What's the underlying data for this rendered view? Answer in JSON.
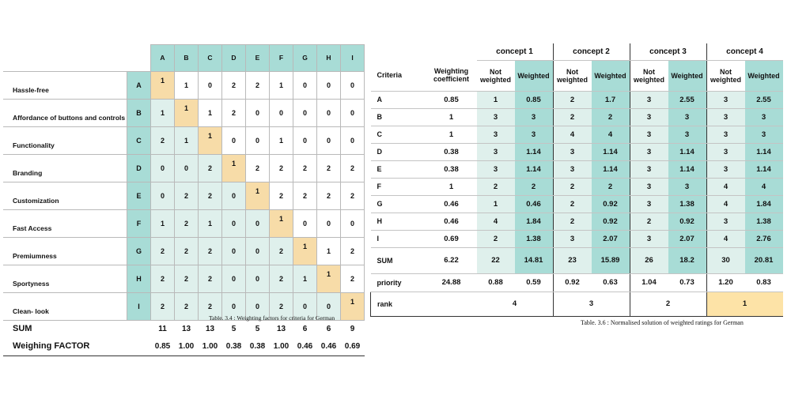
{
  "matrix": {
    "columns": [
      "A",
      "B",
      "C",
      "D",
      "E",
      "F",
      "G",
      "H",
      "I"
    ],
    "rows": [
      {
        "label": "Hassle-free",
        "code": "A",
        "values": [
          "1",
          "1",
          "0",
          "2",
          "2",
          "1",
          "0",
          "0",
          "0"
        ]
      },
      {
        "label": "Affordance of buttons and controls",
        "code": "B",
        "values": [
          "1",
          "1",
          "1",
          "2",
          "0",
          "0",
          "0",
          "0",
          "0"
        ]
      },
      {
        "label": "Functionality",
        "code": "C",
        "values": [
          "2",
          "1",
          "1",
          "0",
          "0",
          "1",
          "0",
          "0",
          "0"
        ]
      },
      {
        "label": "Branding",
        "code": "D",
        "values": [
          "0",
          "0",
          "2",
          "1",
          "2",
          "2",
          "2",
          "2",
          "2"
        ]
      },
      {
        "label": "Customization",
        "code": "E",
        "values": [
          "0",
          "2",
          "2",
          "0",
          "1",
          "2",
          "2",
          "2",
          "2"
        ]
      },
      {
        "label": "Fast Access",
        "code": "F",
        "values": [
          "1",
          "2",
          "1",
          "0",
          "0",
          "1",
          "0",
          "0",
          "0"
        ]
      },
      {
        "label": "Premiumness",
        "code": "G",
        "values": [
          "2",
          "2",
          "2",
          "0",
          "0",
          "2",
          "1",
          "1",
          "2"
        ]
      },
      {
        "label": "Sportyness",
        "code": "H",
        "values": [
          "2",
          "2",
          "2",
          "0",
          "0",
          "2",
          "1",
          "1",
          "2"
        ]
      },
      {
        "label": "Clean- look",
        "code": "I",
        "values": [
          "2",
          "2",
          "2",
          "0",
          "0",
          "2",
          "0",
          "0",
          "1"
        ]
      }
    ],
    "sum_label": "SUM",
    "sums": [
      "11",
      "13",
      "13",
      "5",
      "5",
      "13",
      "6",
      "6",
      "9"
    ],
    "factor_label": "Weighing FACTOR",
    "factors": [
      "0.85",
      "1.00",
      "1.00",
      "0.38",
      "0.38",
      "1.00",
      "0.46",
      "0.46",
      "0.69"
    ],
    "caption": "Table. 3.4 : Weighting factors for criteria for German"
  },
  "ratings": {
    "criteria_header": "Criteria",
    "coef_header": "Weighting coefficient",
    "concepts": [
      "concept 1",
      "concept 2",
      "concept 3",
      "concept 4"
    ],
    "not_weighted_label": "Not weighted",
    "weighted_label": "Weighted",
    "rows": [
      {
        "c": "A",
        "wc": "0.85",
        "v": [
          [
            "1",
            "0.85"
          ],
          [
            "2",
            "1.7"
          ],
          [
            "3",
            "2.55"
          ],
          [
            "3",
            "2.55"
          ]
        ]
      },
      {
        "c": "B",
        "wc": "1",
        "v": [
          [
            "3",
            "3"
          ],
          [
            "2",
            "2"
          ],
          [
            "3",
            "3"
          ],
          [
            "3",
            "3"
          ]
        ]
      },
      {
        "c": "C",
        "wc": "1",
        "v": [
          [
            "3",
            "3"
          ],
          [
            "4",
            "4"
          ],
          [
            "3",
            "3"
          ],
          [
            "3",
            "3"
          ]
        ]
      },
      {
        "c": "D",
        "wc": "0.38",
        "v": [
          [
            "3",
            "1.14"
          ],
          [
            "3",
            "1.14"
          ],
          [
            "3",
            "1.14"
          ],
          [
            "3",
            "1.14"
          ]
        ]
      },
      {
        "c": "E",
        "wc": "0.38",
        "v": [
          [
            "3",
            "1.14"
          ],
          [
            "3",
            "1.14"
          ],
          [
            "3",
            "1.14"
          ],
          [
            "3",
            "1.14"
          ]
        ]
      },
      {
        "c": "F",
        "wc": "1",
        "v": [
          [
            "2",
            "2"
          ],
          [
            "2",
            "2"
          ],
          [
            "3",
            "3"
          ],
          [
            "4",
            "4"
          ]
        ]
      },
      {
        "c": "G",
        "wc": "0.46",
        "v": [
          [
            "1",
            "0.46"
          ],
          [
            "2",
            "0.92"
          ],
          [
            "3",
            "1.38"
          ],
          [
            "4",
            "1.84"
          ]
        ]
      },
      {
        "c": "H",
        "wc": "0.46",
        "v": [
          [
            "4",
            "1.84"
          ],
          [
            "2",
            "0.92"
          ],
          [
            "2",
            "0.92"
          ],
          [
            "3",
            "1.38"
          ]
        ]
      },
      {
        "c": "I",
        "wc": "0.69",
        "v": [
          [
            "2",
            "1.38"
          ],
          [
            "3",
            "2.07"
          ],
          [
            "3",
            "2.07"
          ],
          [
            "4",
            "2.76"
          ]
        ]
      }
    ],
    "sum": {
      "c": "SUM",
      "wc": "6.22",
      "v": [
        [
          "22",
          "14.81"
        ],
        [
          "23",
          "15.89"
        ],
        [
          "26",
          "18.2"
        ],
        [
          "30",
          "20.81"
        ]
      ]
    },
    "priority": {
      "c": "priority",
      "wc": "24.88",
      "v": [
        [
          "0.88",
          "0.59"
        ],
        [
          "0.92",
          "0.63"
        ],
        [
          "1.04",
          "0.73"
        ],
        [
          "1.20",
          "0.83"
        ]
      ]
    },
    "rank_label": "rank",
    "ranks": [
      "4",
      "3",
      "2",
      "1"
    ],
    "caption": "Table. 3.6 : Normalised solution of weighted ratings for German"
  },
  "colors": {
    "teal": "#a8dcd6",
    "light_teal": "#dff0ec",
    "peach": "#f7dca8",
    "rank_highlight": "#fde3a7"
  }
}
